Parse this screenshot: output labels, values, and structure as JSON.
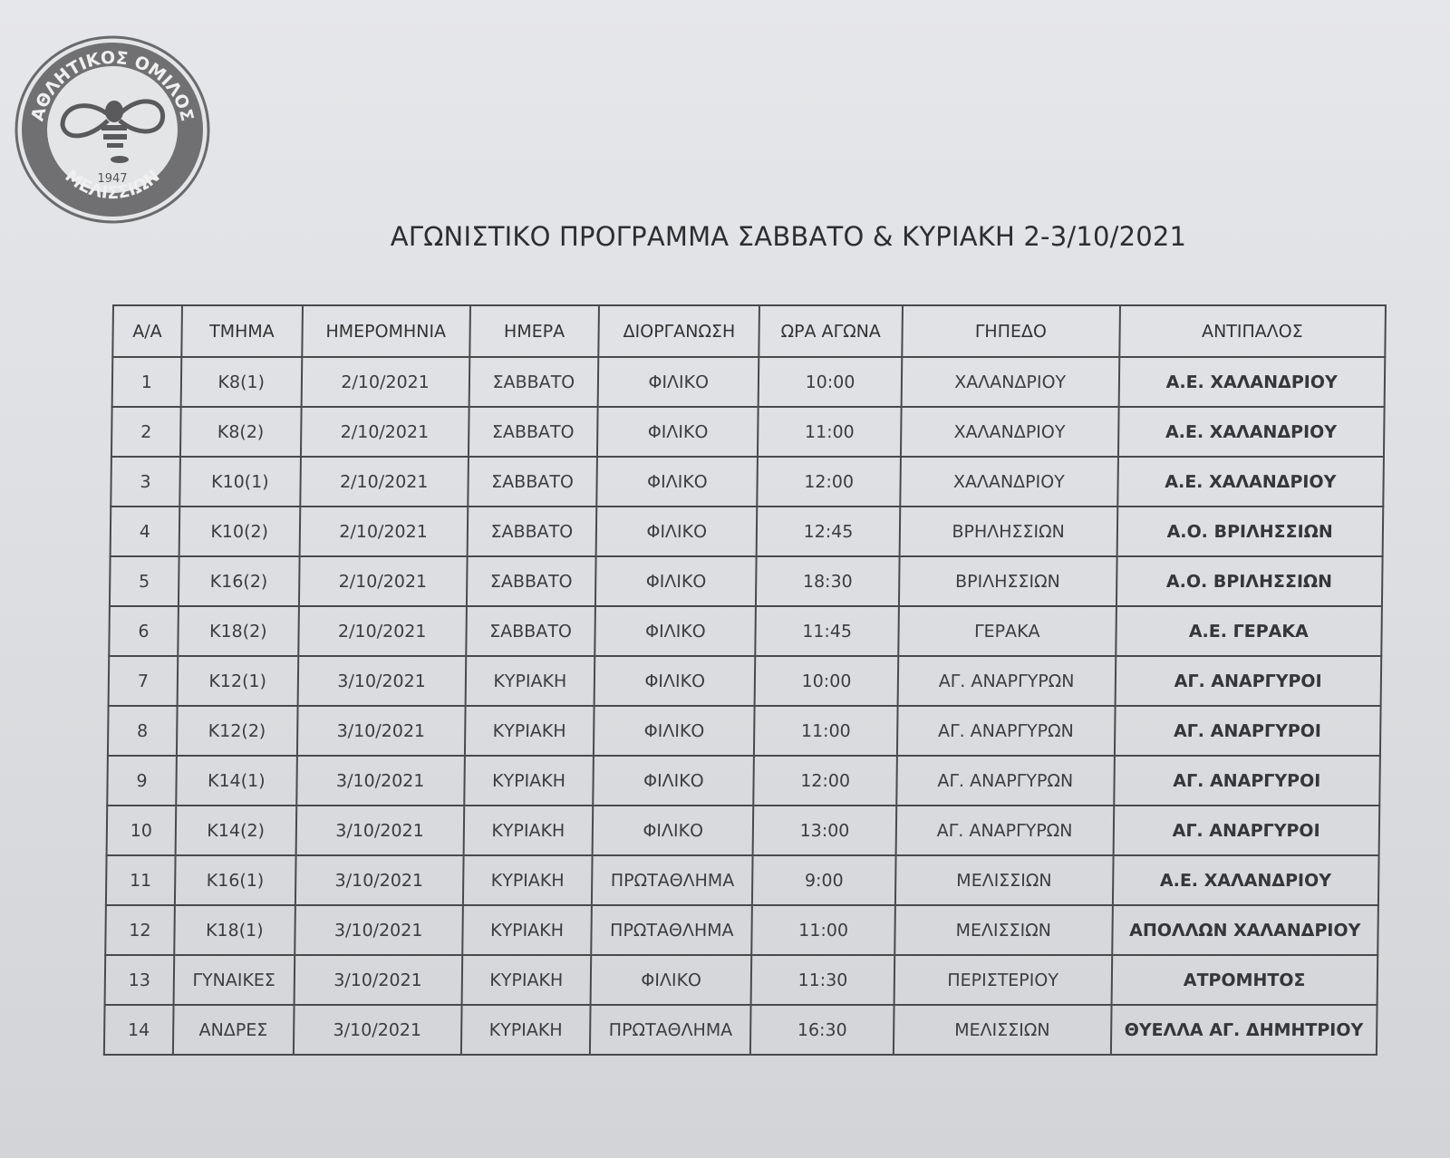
{
  "logo": {
    "top_text": "ΑΘΛΗΤΙΚΟΣ ΟΜΙΛΟΣ",
    "bottom_text": "ΜΕΛΙΣΣΙΩΝ",
    "year": "1947"
  },
  "title": "ΑΓΩΝΙΣΤΙΚΟ ΠΡΟΓΡΑΜΜΑ ΣΑΒΒΑΤΟ & ΚΥΡΙΑΚΗ 2-3/10/2021",
  "table": {
    "headers": [
      "Α/Α",
      "ΤΜΗΜΑ",
      "ΗΜΕΡΟΜΗΝΙΑ",
      "ΗΜΕΡΑ",
      "ΔΙΟΡΓΑΝΩΣΗ",
      "ΩΡΑ ΑΓΩΝΑ",
      "ΓΗΠΕΔΟ",
      "ΑΝΤΙΠΑΛΟΣ"
    ],
    "rows": [
      [
        "1",
        "Κ8(1)",
        "2/10/2021",
        "ΣΑΒΒΑΤΟ",
        "ΦΙΛΙΚΟ",
        "10:00",
        "ΧΑΛΑΝΔΡΙΟΥ",
        "Α.Ε. ΧΑΛΑΝΔΡΙΟΥ"
      ],
      [
        "2",
        "Κ8(2)",
        "2/10/2021",
        "ΣΑΒΒΑΤΟ",
        "ΦΙΛΙΚΟ",
        "11:00",
        "ΧΑΛΑΝΔΡΙΟΥ",
        "Α.Ε. ΧΑΛΑΝΔΡΙΟΥ"
      ],
      [
        "3",
        "Κ10(1)",
        "2/10/2021",
        "ΣΑΒΒΑΤΟ",
        "ΦΙΛΙΚΟ",
        "12:00",
        "ΧΑΛΑΝΔΡΙΟΥ",
        "Α.Ε. ΧΑΛΑΝΔΡΙΟΥ"
      ],
      [
        "4",
        "Κ10(2)",
        "2/10/2021",
        "ΣΑΒΒΑΤΟ",
        "ΦΙΛΙΚΟ",
        "12:45",
        "ΒΡΗΛΗΣΣΙΩΝ",
        "Α.Ο. ΒΡΙΛΗΣΣΙΩΝ"
      ],
      [
        "5",
        "Κ16(2)",
        "2/10/2021",
        "ΣΑΒΒΑΤΟ",
        "ΦΙΛΙΚΟ",
        "18:30",
        "ΒΡΙΛΗΣΣΙΩΝ",
        "Α.Ο. ΒΡΙΛΗΣΣΙΩΝ"
      ],
      [
        "6",
        "Κ18(2)",
        "2/10/2021",
        "ΣΑΒΒΑΤΟ",
        "ΦΙΛΙΚΟ",
        "11:45",
        "ΓΕΡΑΚΑ",
        "Α.Ε. ΓΕΡΑΚΑ"
      ],
      [
        "7",
        "Κ12(1)",
        "3/10/2021",
        "ΚΥΡΙΑΚΗ",
        "ΦΙΛΙΚΟ",
        "10:00",
        "ΑΓ. ΑΝΑΡΓΥΡΩΝ",
        "ΑΓ. ΑΝΑΡΓΥΡΟΙ"
      ],
      [
        "8",
        "Κ12(2)",
        "3/10/2021",
        "ΚΥΡΙΑΚΗ",
        "ΦΙΛΙΚΟ",
        "11:00",
        "ΑΓ. ΑΝΑΡΓΥΡΩΝ",
        "ΑΓ. ΑΝΑΡΓΥΡΟΙ"
      ],
      [
        "9",
        "Κ14(1)",
        "3/10/2021",
        "ΚΥΡΙΑΚΗ",
        "ΦΙΛΙΚΟ",
        "12:00",
        "ΑΓ. ΑΝΑΡΓΥΡΩΝ",
        "ΑΓ. ΑΝΑΡΓΥΡΟΙ"
      ],
      [
        "10",
        "Κ14(2)",
        "3/10/2021",
        "ΚΥΡΙΑΚΗ",
        "ΦΙΛΙΚΟ",
        "13:00",
        "ΑΓ. ΑΝΑΡΓΥΡΩΝ",
        "ΑΓ. ΑΝΑΡΓΥΡΟΙ"
      ],
      [
        "11",
        "Κ16(1)",
        "3/10/2021",
        "ΚΥΡΙΑΚΗ",
        "ΠΡΩΤΑΘΛΗΜΑ",
        "9:00",
        "ΜΕΛΙΣΣΙΩΝ",
        "Α.Ε. ΧΑΛΑΝΔΡΙΟΥ"
      ],
      [
        "12",
        "Κ18(1)",
        "3/10/2021",
        "ΚΥΡΙΑΚΗ",
        "ΠΡΩΤΑΘΛΗΜΑ",
        "11:00",
        "ΜΕΛΙΣΣΙΩΝ",
        "ΑΠΟΛΛΩΝ ΧΑΛΑΝΔΡΙΟΥ"
      ],
      [
        "13",
        "ΓΥΝΑΙΚΕΣ",
        "3/10/2021",
        "ΚΥΡΙΑΚΗ",
        "ΦΙΛΙΚΟ",
        "11:30",
        "ΠΕΡΙΣΤΕΡΙΟΥ",
        "ΑΤΡΟΜΗΤΟΣ"
      ],
      [
        "14",
        "ΑΝΔΡΕΣ",
        "3/10/2021",
        "ΚΥΡΙΑΚΗ",
        "ΠΡΩΤΑΘΛΗΜΑ",
        "16:30",
        "ΜΕΛΙΣΣΙΩΝ",
        "ΘΥΕΛΛΑ ΑΓ. ΔΗΜΗΤΡΙΟΥ"
      ]
    ]
  }
}
